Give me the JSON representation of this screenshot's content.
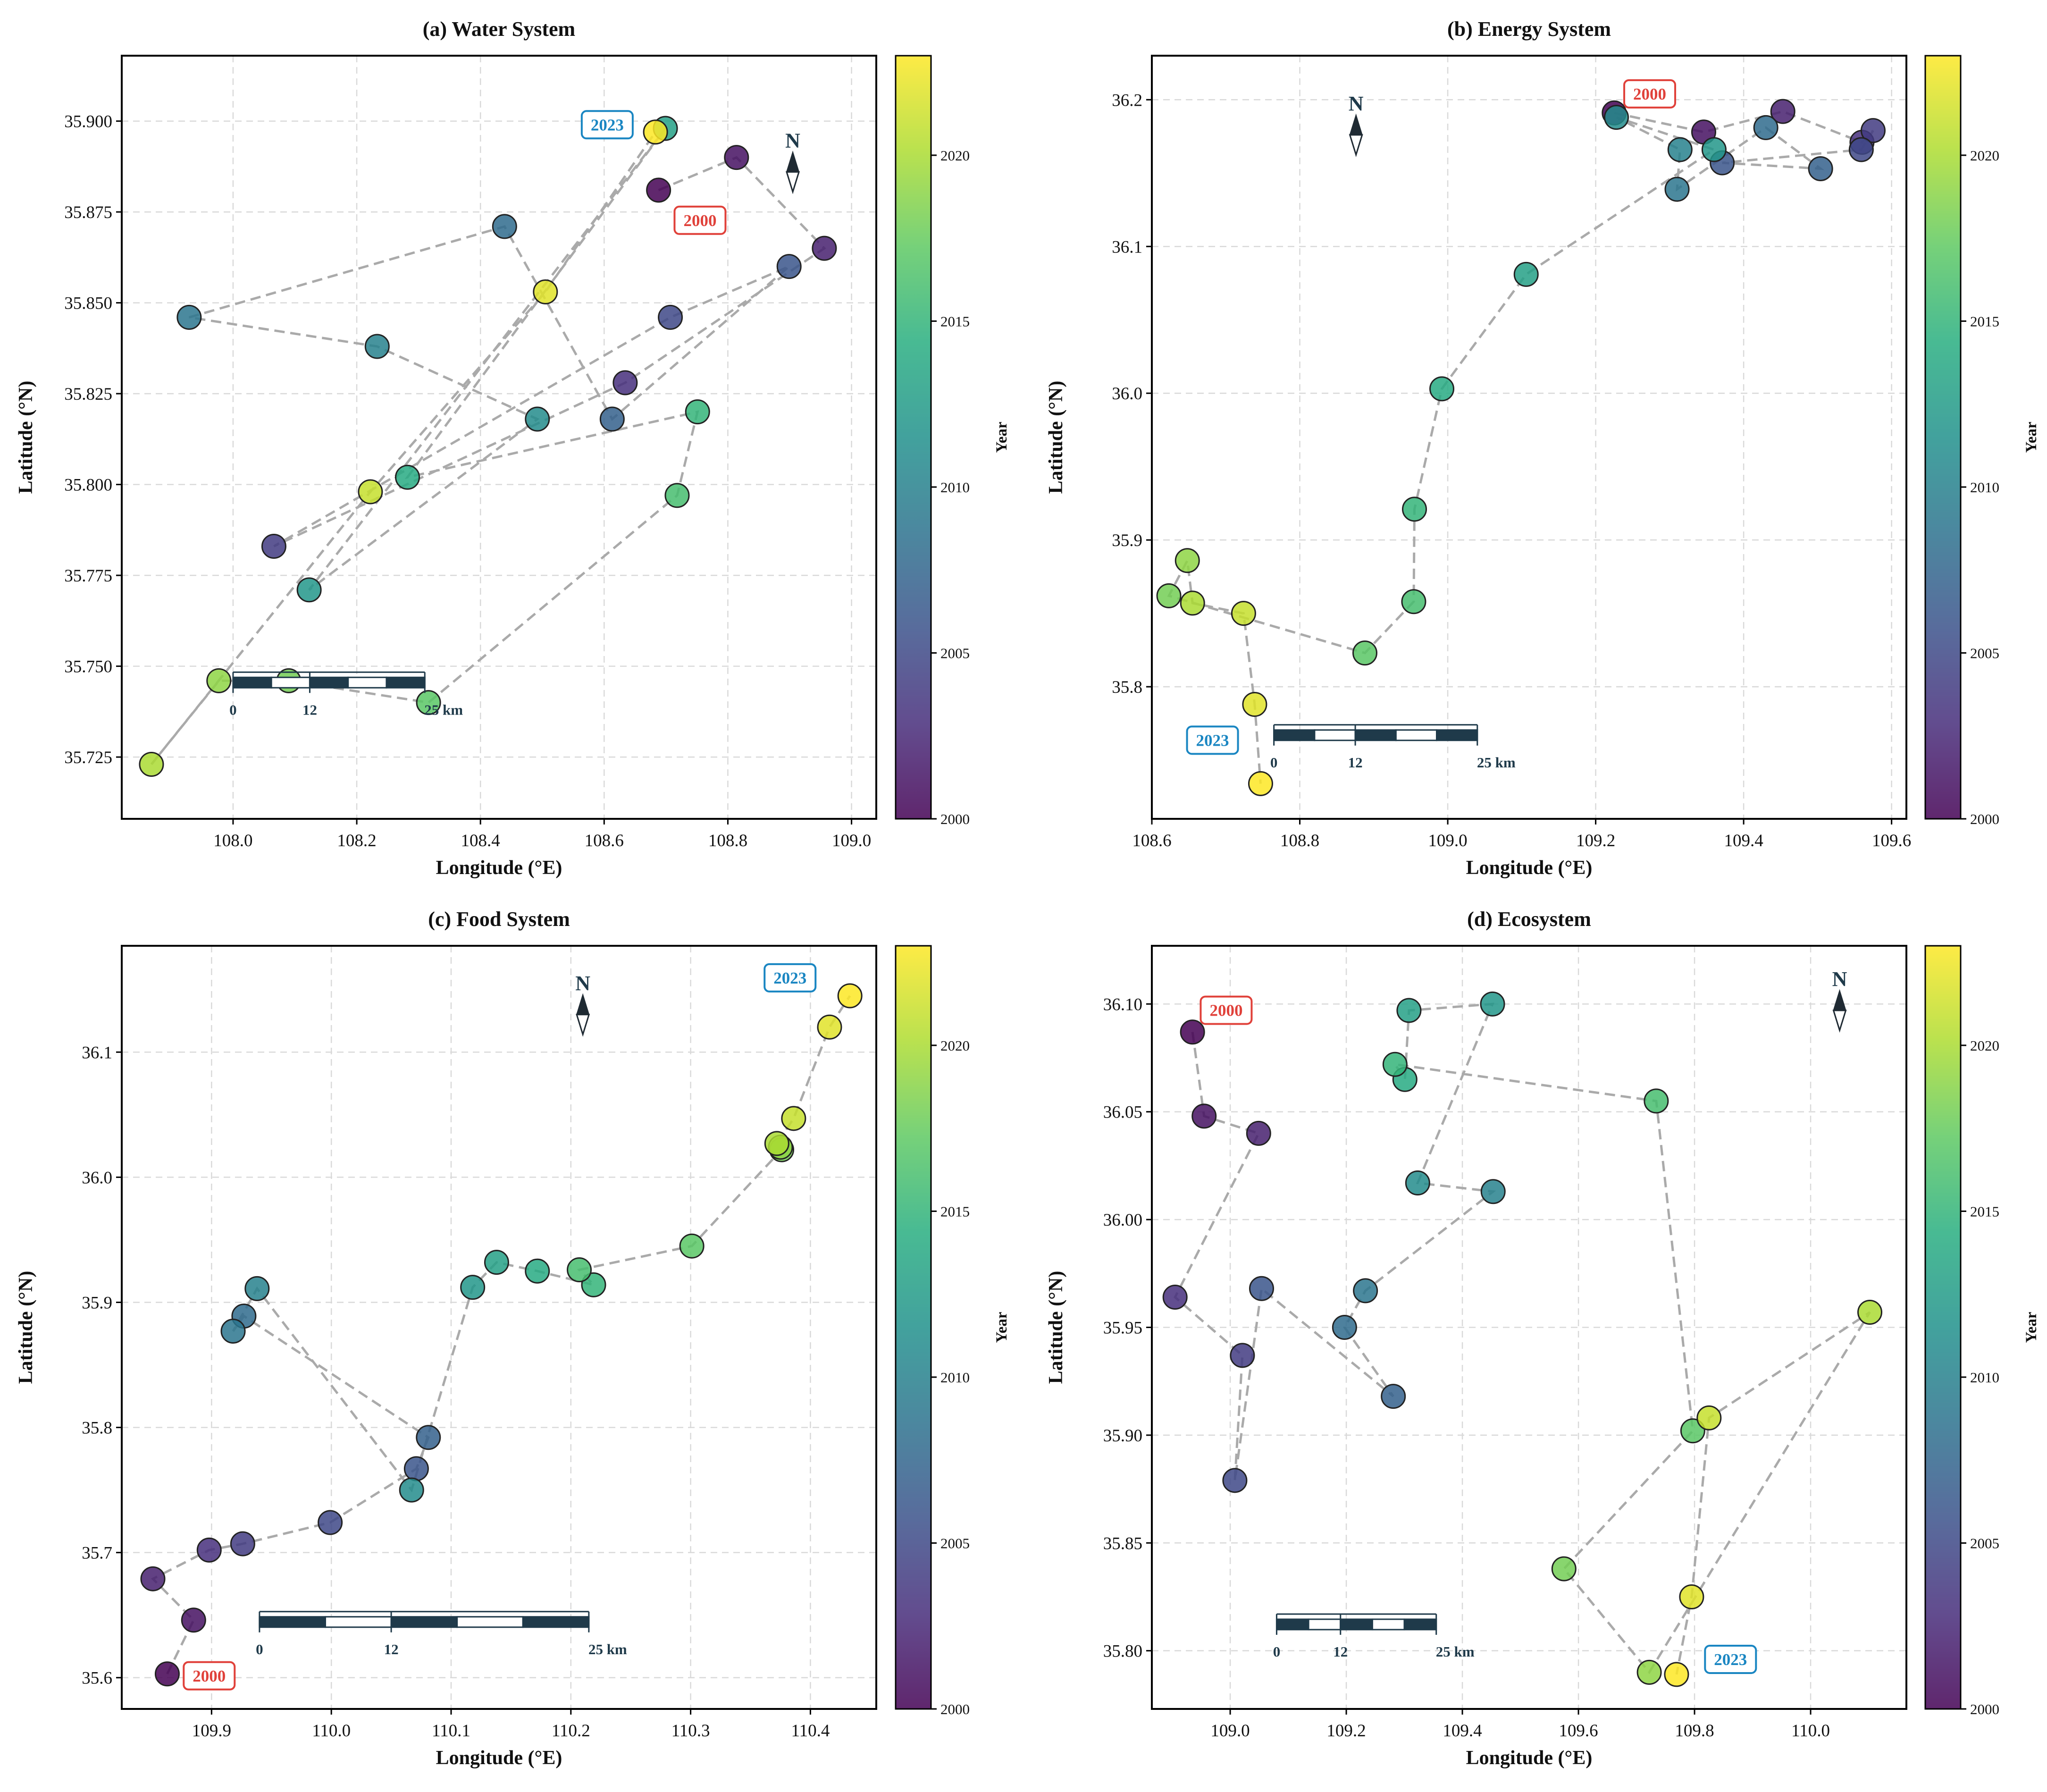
{
  "figure": {
    "colormap": "viridis",
    "colorbar": {
      "label": "Year",
      "min": 2000,
      "max": 2023,
      "ticks": [
        2000,
        2005,
        2010,
        2015,
        2020
      ]
    },
    "xlabel": "Longitude (°E)",
    "ylabel": "Latitude (°N)",
    "north_label": "N",
    "scale_bar_labels": [
      "0",
      "12",
      "25 km"
    ],
    "start_color": "#e0413a",
    "end_color": "#1a86c2",
    "line_color": "#aaaaaa"
  },
  "chart_data": [
    {
      "type": "scatter",
      "title": "(a) Water System",
      "xlim": [
        107.82,
        109.04
      ],
      "ylim": [
        35.708,
        35.918
      ],
      "xticks": [
        108.0,
        108.2,
        108.4,
        108.6,
        108.8,
        109.0
      ],
      "yticks": [
        35.725,
        35.75,
        35.775,
        35.8,
        35.825,
        35.85,
        35.875,
        35.9
      ],
      "xtick_labels": [
        "108.0",
        "108.2",
        "108.4",
        "108.6",
        "108.8",
        "109.0"
      ],
      "ytick_labels": [
        "35.725",
        "35.750",
        "35.775",
        "35.800",
        "35.825",
        "35.850",
        "35.875",
        "35.900"
      ],
      "start_label": "2000",
      "end_label": "2023",
      "start_label_pos": [
        108.755,
        35.8727
      ],
      "end_label_pos": [
        108.605,
        35.899
      ],
      "scalebar": {
        "x0": 108.0,
        "x1": 108.31,
        "y": 35.7455
      },
      "north": [
        108.905,
        35.886
      ],
      "points": [
        {
          "year": 2000,
          "lon": 108.688,
          "lat": 35.881
        },
        {
          "year": 2001,
          "lon": 108.814,
          "lat": 35.89
        },
        {
          "year": 2002,
          "lon": 108.956,
          "lat": 35.865
        },
        {
          "year": 2003,
          "lon": 108.634,
          "lat": 35.828
        },
        {
          "year": 2004,
          "lon": 108.066,
          "lat": 35.783
        },
        {
          "year": 2005,
          "lon": 108.707,
          "lat": 35.846
        },
        {
          "year": 2006,
          "lon": 108.899,
          "lat": 35.86
        },
        {
          "year": 2007,
          "lon": 108.613,
          "lat": 35.818
        },
        {
          "year": 2008,
          "lon": 108.439,
          "lat": 35.871
        },
        {
          "year": 2009,
          "lon": 107.929,
          "lat": 35.846
        },
        {
          "year": 2010,
          "lon": 108.233,
          "lat": 35.838
        },
        {
          "year": 2011,
          "lon": 108.492,
          "lat": 35.818
        },
        {
          "year": 2012,
          "lon": 108.123,
          "lat": 35.771
        },
        {
          "year": 2013,
          "lon": 108.699,
          "lat": 35.898
        },
        {
          "year": 2014,
          "lon": 108.282,
          "lat": 35.802
        },
        {
          "year": 2015,
          "lon": 108.751,
          "lat": 35.82
        },
        {
          "year": 2016,
          "lon": 108.718,
          "lat": 35.797
        },
        {
          "year": 2017,
          "lon": 108.316,
          "lat": 35.74
        },
        {
          "year": 2018,
          "lon": 108.09,
          "lat": 35.746
        },
        {
          "year": 2019,
          "lon": 107.977,
          "lat": 35.746
        },
        {
          "year": 2020,
          "lon": 107.868,
          "lat": 35.723
        },
        {
          "year": 2021,
          "lon": 108.222,
          "lat": 35.798
        },
        {
          "year": 2022,
          "lon": 108.505,
          "lat": 35.853
        },
        {
          "year": 2023,
          "lon": 108.683,
          "lat": 35.897
        }
      ]
    },
    {
      "type": "scatter",
      "title": "(b) Energy System",
      "xlim": [
        108.6,
        109.62
      ],
      "ylim": [
        35.71,
        36.23
      ],
      "xticks": [
        108.6,
        108.8,
        109.0,
        109.2,
        109.4,
        109.6
      ],
      "yticks": [
        35.8,
        35.9,
        36.0,
        36.1,
        36.2
      ],
      "xtick_labels": [
        "108.6",
        "108.8",
        "109.0",
        "109.2",
        "109.4",
        "109.6"
      ],
      "ytick_labels": [
        "35.8",
        "35.9",
        "36.0",
        "36.1",
        "36.2"
      ],
      "start_label": "2000",
      "end_label": "2023",
      "start_label_pos": [
        109.273,
        36.204
      ],
      "end_label_pos": [
        108.682,
        35.7636
      ],
      "scalebar": {
        "x0": 108.765,
        "x1": 109.04,
        "y": 35.767
      },
      "north": [
        108.876,
        36.176
      ],
      "points": [
        {
          "year": 2000,
          "lon": 109.225,
          "lat": 36.191
        },
        {
          "year": 2001,
          "lon": 109.346,
          "lat": 36.178
        },
        {
          "year": 2002,
          "lon": 109.453,
          "lat": 36.192
        },
        {
          "year": 2003,
          "lon": 109.56,
          "lat": 36.171
        },
        {
          "year": 2004,
          "lon": 109.575,
          "lat": 36.179
        },
        {
          "year": 2005,
          "lon": 109.559,
          "lat": 36.166
        },
        {
          "year": 2006,
          "lon": 109.371,
          "lat": 36.157
        },
        {
          "year": 2007,
          "lon": 109.504,
          "lat": 36.153
        },
        {
          "year": 2008,
          "lon": 109.43,
          "lat": 36.181
        },
        {
          "year": 2009,
          "lon": 109.31,
          "lat": 36.139
        },
        {
          "year": 2010,
          "lon": 109.314,
          "lat": 36.166
        },
        {
          "year": 2011,
          "lon": 109.228,
          "lat": 36.188
        },
        {
          "year": 2012,
          "lon": 109.36,
          "lat": 36.166
        },
        {
          "year": 2013,
          "lon": 109.106,
          "lat": 36.081
        },
        {
          "year": 2014,
          "lon": 108.992,
          "lat": 36.003
        },
        {
          "year": 2015,
          "lon": 108.955,
          "lat": 35.921
        },
        {
          "year": 2016,
          "lon": 108.954,
          "lat": 35.858
        },
        {
          "year": 2017,
          "lon": 108.888,
          "lat": 35.823
        },
        {
          "year": 2018,
          "lon": 108.623,
          "lat": 35.862
        },
        {
          "year": 2019,
          "lon": 108.648,
          "lat": 35.886
        },
        {
          "year": 2020,
          "lon": 108.655,
          "lat": 35.857
        },
        {
          "year": 2021,
          "lon": 108.724,
          "lat": 35.85
        },
        {
          "year": 2022,
          "lon": 108.739,
          "lat": 35.788
        },
        {
          "year": 2023,
          "lon": 108.747,
          "lat": 35.734
        }
      ]
    },
    {
      "type": "scatter",
      "title": "(c) Food System",
      "xlim": [
        109.825,
        110.455
      ],
      "ylim": [
        35.575,
        36.185
      ],
      "xticks": [
        109.9,
        110.0,
        110.1,
        110.2,
        110.3,
        110.4
      ],
      "yticks": [
        35.6,
        35.7,
        35.8,
        35.9,
        36.0,
        36.1
      ],
      "xtick_labels": [
        "109.9",
        "110.0",
        "110.1",
        "110.2",
        "110.3",
        "110.4"
      ],
      "ytick_labels": [
        "35.6",
        "35.7",
        "35.8",
        "35.9",
        "36.0",
        "36.1"
      ],
      "start_label": "2000",
      "end_label": "2023",
      "start_label_pos": [
        109.898,
        35.6015
      ],
      "end_label_pos": [
        110.383,
        36.1594
      ],
      "scalebar": {
        "x0": 109.94,
        "x1": 110.215,
        "y": 35.6445
      },
      "north": [
        110.21,
        36.13
      ],
      "points": [
        {
          "year": 2000,
          "lon": 109.863,
          "lat": 35.603
        },
        {
          "year": 2001,
          "lon": 109.885,
          "lat": 35.646
        },
        {
          "year": 2002,
          "lon": 109.851,
          "lat": 35.679
        },
        {
          "year": 2003,
          "lon": 109.898,
          "lat": 35.702
        },
        {
          "year": 2004,
          "lon": 109.926,
          "lat": 35.707
        },
        {
          "year": 2005,
          "lon": 109.999,
          "lat": 35.724
        },
        {
          "year": 2006,
          "lon": 110.071,
          "lat": 35.767
        },
        {
          "year": 2007,
          "lon": 110.081,
          "lat": 35.792
        },
        {
          "year": 2008,
          "lon": 109.927,
          "lat": 35.889
        },
        {
          "year": 2009,
          "lon": 109.918,
          "lat": 35.877
        },
        {
          "year": 2010,
          "lon": 109.938,
          "lat": 35.911
        },
        {
          "year": 2011,
          "lon": 110.067,
          "lat": 35.75
        },
        {
          "year": 2012,
          "lon": 110.118,
          "lat": 35.912
        },
        {
          "year": 2013,
          "lon": 110.138,
          "lat": 35.932
        },
        {
          "year": 2014,
          "lon": 110.172,
          "lat": 35.925
        },
        {
          "year": 2015,
          "lon": 110.219,
          "lat": 35.914
        },
        {
          "year": 2016,
          "lon": 110.207,
          "lat": 35.926
        },
        {
          "year": 2017,
          "lon": 110.301,
          "lat": 35.945
        },
        {
          "year": 2018,
          "lon": 110.376,
          "lat": 36.022
        },
        {
          "year": 2019,
          "lon": 110.375,
          "lat": 36.024
        },
        {
          "year": 2020,
          "lon": 110.372,
          "lat": 36.027
        },
        {
          "year": 2021,
          "lon": 110.386,
          "lat": 36.047
        },
        {
          "year": 2022,
          "lon": 110.416,
          "lat": 36.12
        },
        {
          "year": 2023,
          "lon": 110.433,
          "lat": 36.145
        }
      ]
    },
    {
      "type": "scatter",
      "title": "(d) Ecosystem",
      "xlim": [
        108.865,
        110.165
      ],
      "ylim": [
        35.773,
        36.127
      ],
      "xticks": [
        109.0,
        109.2,
        109.4,
        109.6,
        109.8,
        110.0
      ],
      "yticks": [
        35.8,
        35.85,
        35.9,
        35.95,
        36.0,
        36.05,
        36.1
      ],
      "xtick_labels": [
        "109.0",
        "109.2",
        "109.4",
        "109.6",
        "109.8",
        "110.0"
      ],
      "ytick_labels": [
        "35.80",
        "35.85",
        "35.90",
        "35.95",
        "36.00",
        "36.05",
        "36.10"
      ],
      "start_label": "2000",
      "end_label": "2023",
      "start_label_pos": [
        108.993,
        36.0971
      ],
      "end_label_pos": [
        109.862,
        35.796
      ],
      "scalebar": {
        "x0": 109.08,
        "x1": 109.355,
        "y": 35.8122
      },
      "north": [
        110.05,
        36.097
      ],
      "points": [
        {
          "year": 2000,
          "lon": 108.935,
          "lat": 36.087
        },
        {
          "year": 2001,
          "lon": 108.955,
          "lat": 36.048
        },
        {
          "year": 2002,
          "lon": 109.049,
          "lat": 36.04
        },
        {
          "year": 2003,
          "lon": 108.905,
          "lat": 35.964
        },
        {
          "year": 2004,
          "lon": 109.021,
          "lat": 35.937
        },
        {
          "year": 2005,
          "lon": 109.008,
          "lat": 35.879
        },
        {
          "year": 2006,
          "lon": 109.054,
          "lat": 35.968
        },
        {
          "year": 2007,
          "lon": 109.281,
          "lat": 35.918
        },
        {
          "year": 2008,
          "lon": 109.197,
          "lat": 35.95
        },
        {
          "year": 2009,
          "lon": 109.233,
          "lat": 35.967
        },
        {
          "year": 2010,
          "lon": 109.453,
          "lat": 36.013
        },
        {
          "year": 2011,
          "lon": 109.323,
          "lat": 36.017
        },
        {
          "year": 2012,
          "lon": 109.452,
          "lat": 36.1
        },
        {
          "year": 2013,
          "lon": 109.308,
          "lat": 36.097
        },
        {
          "year": 2014,
          "lon": 109.301,
          "lat": 36.065
        },
        {
          "year": 2015,
          "lon": 109.284,
          "lat": 36.072
        },
        {
          "year": 2016,
          "lon": 109.734,
          "lat": 36.055
        },
        {
          "year": 2017,
          "lon": 109.797,
          "lat": 35.902
        },
        {
          "year": 2018,
          "lon": 109.575,
          "lat": 35.838
        },
        {
          "year": 2019,
          "lon": 109.722,
          "lat": 35.79
        },
        {
          "year": 2020,
          "lon": 110.102,
          "lat": 35.957
        },
        {
          "year": 2021,
          "lon": 109.825,
          "lat": 35.908
        },
        {
          "year": 2022,
          "lon": 109.795,
          "lat": 35.825
        },
        {
          "year": 2023,
          "lon": 109.769,
          "lat": 35.789
        }
      ]
    }
  ]
}
